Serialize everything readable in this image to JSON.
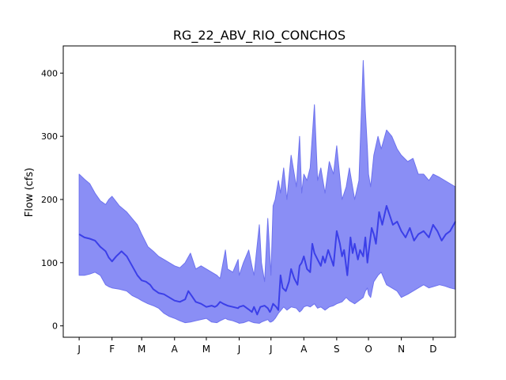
{
  "chart_data": {
    "type": "area",
    "title": "RG_22_ABV_RIO_CONCHOS",
    "xlabel": "",
    "ylabel": "Flow (cfs)",
    "xlim": [
      -15,
      355
    ],
    "ylim": [
      -18,
      443
    ],
    "x_ticks": [
      {
        "day": 0,
        "label": "J"
      },
      {
        "day": 31,
        "label": "F"
      },
      {
        "day": 59,
        "label": "M"
      },
      {
        "day": 90,
        "label": "A"
      },
      {
        "day": 120,
        "label": "M"
      },
      {
        "day": 151,
        "label": "J"
      },
      {
        "day": 181,
        "label": "J"
      },
      {
        "day": 212,
        "label": "A"
      },
      {
        "day": 243,
        "label": "S"
      },
      {
        "day": 273,
        "label": "O"
      },
      {
        "day": 304,
        "label": "N"
      },
      {
        "day": 334,
        "label": "D"
      }
    ],
    "y_ticks": [
      0,
      100,
      200,
      300,
      400
    ],
    "grid": false,
    "colors": {
      "band": "#8a8ef5",
      "band_edge": "#6d72ee",
      "median": "#3b3fe8"
    },
    "series": [
      {
        "role": "band",
        "x": [
          0,
          5,
          10,
          15,
          20,
          25,
          28,
          31,
          38,
          45,
          50,
          55,
          59,
          65,
          70,
          75,
          80,
          85,
          90,
          95,
          100,
          105,
          110,
          115,
          120,
          125,
          130,
          133,
          138,
          140,
          145,
          150,
          151,
          155,
          160,
          163,
          165,
          170,
          172,
          175,
          178,
          180,
          181,
          183,
          185,
          188,
          190,
          193,
          196,
          200,
          205,
          208,
          210,
          212,
          215,
          218,
          222,
          225,
          228,
          232,
          236,
          240,
          243,
          248,
          252,
          255,
          260,
          264,
          268,
          270,
          272,
          273,
          275,
          278,
          282,
          285,
          290,
          295,
          300,
          304,
          310,
          315,
          320,
          325,
          330,
          334,
          340,
          345,
          350,
          355
        ],
        "upper": [
          240,
          232,
          225,
          210,
          198,
          192,
          200,
          205,
          190,
          180,
          170,
          160,
          145,
          125,
          118,
          110,
          105,
          100,
          95,
          92,
          100,
          115,
          90,
          95,
          90,
          85,
          80,
          75,
          120,
          90,
          85,
          105,
          80,
          100,
          120,
          95,
          80,
          160,
          100,
          70,
          170,
          110,
          80,
          190,
          200,
          230,
          210,
          250,
          200,
          270,
          220,
          300,
          210,
          240,
          230,
          250,
          350,
          230,
          250,
          210,
          260,
          240,
          285,
          200,
          220,
          250,
          200,
          230,
          420,
          340,
          280,
          240,
          220,
          270,
          300,
          280,
          310,
          300,
          280,
          270,
          260,
          265,
          240,
          240,
          230,
          240,
          235,
          230,
          225,
          220
        ],
        "lower": [
          80,
          80,
          82,
          85,
          80,
          65,
          62,
          60,
          58,
          55,
          48,
          44,
          40,
          35,
          32,
          28,
          20,
          15,
          12,
          8,
          5,
          6,
          8,
          10,
          12,
          6,
          5,
          8,
          12,
          10,
          8,
          5,
          4,
          5,
          8,
          6,
          5,
          4,
          6,
          8,
          10,
          6,
          6,
          8,
          12,
          20,
          24,
          30,
          25,
          30,
          28,
          22,
          25,
          30,
          32,
          30,
          35,
          28,
          30,
          25,
          30,
          32,
          35,
          38,
          45,
          40,
          35,
          40,
          45,
          55,
          60,
          50,
          45,
          70,
          80,
          85,
          65,
          60,
          55,
          45,
          50,
          55,
          60,
          65,
          60,
          62,
          65,
          63,
          60,
          58
        ]
      },
      {
        "role": "median",
        "x": [
          0,
          5,
          10,
          15,
          20,
          25,
          28,
          31,
          35,
          40,
          45,
          50,
          55,
          59,
          63,
          67,
          70,
          75,
          80,
          85,
          90,
          95,
          100,
          103,
          106,
          110,
          115,
          120,
          125,
          128,
          130,
          133,
          136,
          140,
          145,
          150,
          151,
          155,
          160,
          163,
          165,
          168,
          171,
          175,
          178,
          180,
          181,
          183,
          186,
          188,
          190,
          192,
          195,
          198,
          200,
          203,
          206,
          208,
          210,
          212,
          215,
          218,
          220,
          222,
          225,
          228,
          230,
          232,
          235,
          238,
          240,
          243,
          246,
          248,
          250,
          253,
          256,
          258,
          260,
          263,
          265,
          268,
          270,
          272,
          273,
          276,
          278,
          280,
          283,
          286,
          290,
          293,
          296,
          300,
          304,
          308,
          312,
          316,
          320,
          325,
          330,
          334,
          338,
          342,
          346,
          350,
          355
        ],
        "y": [
          145,
          140,
          138,
          135,
          125,
          118,
          108,
          102,
          110,
          118,
          110,
          95,
          80,
          72,
          70,
          65,
          58,
          52,
          50,
          45,
          40,
          38,
          42,
          55,
          48,
          38,
          35,
          30,
          32,
          30,
          32,
          38,
          35,
          32,
          30,
          28,
          30,
          32,
          26,
          22,
          30,
          18,
          30,
          32,
          28,
          22,
          25,
          35,
          30,
          25,
          80,
          60,
          55,
          70,
          90,
          75,
          65,
          95,
          100,
          110,
          90,
          85,
          130,
          115,
          105,
          95,
          110,
          100,
          120,
          105,
          95,
          150,
          130,
          110,
          120,
          80,
          140,
          115,
          130,
          105,
          120,
          110,
          140,
          100,
          115,
          155,
          145,
          130,
          180,
          160,
          190,
          175,
          160,
          165,
          150,
          140,
          155,
          135,
          145,
          150,
          140,
          160,
          150,
          135,
          145,
          150,
          165
        ]
      }
    ]
  }
}
